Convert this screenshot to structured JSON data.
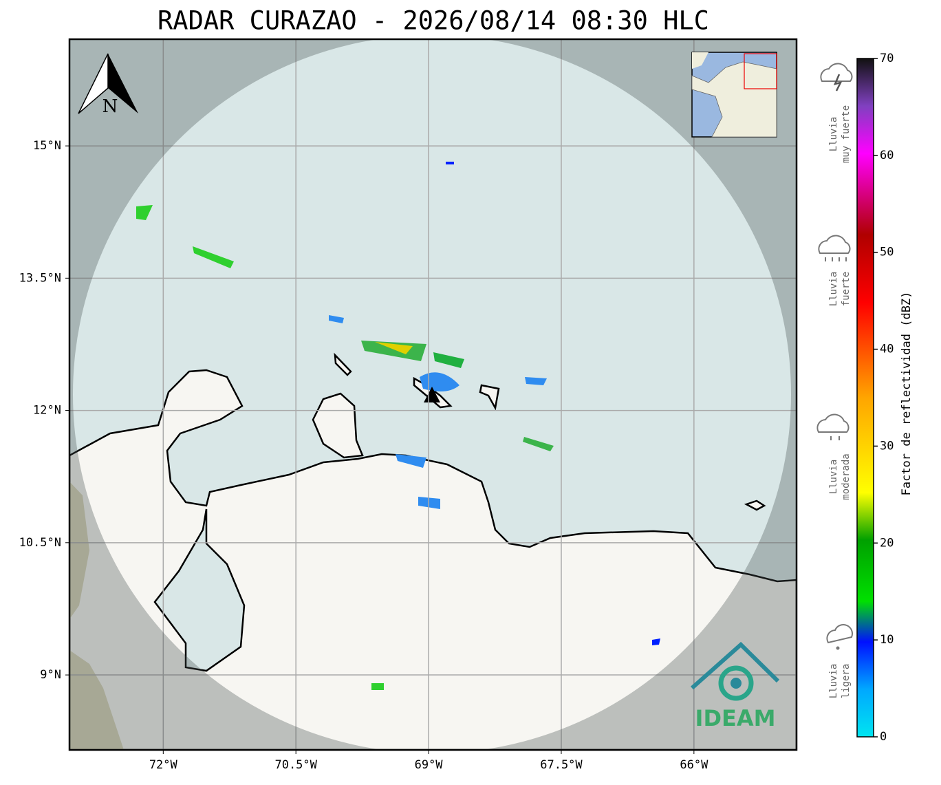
{
  "header": {
    "title": "RADAR CURAZAO - 2026/08/14 08:30 HLC"
  },
  "map": {
    "lonlim": [
      -73.06,
      -64.84
    ],
    "latlim": [
      8.15,
      16.21
    ],
    "grid": true,
    "lon_ticks": [
      {
        "value": -72,
        "label": "72°W"
      },
      {
        "value": -70.5,
        "label": "70.5°W"
      },
      {
        "value": -69,
        "label": "69°W"
      },
      {
        "value": -67.5,
        "label": "67.5°W"
      },
      {
        "value": -66,
        "label": "66°W"
      }
    ],
    "lat_ticks": [
      {
        "value": 15,
        "label": "15°N"
      },
      {
        "value": 13.5,
        "label": "13.5°N"
      },
      {
        "value": 12,
        "label": "12°N"
      },
      {
        "value": 10.5,
        "label": "10.5°N"
      },
      {
        "value": 9,
        "label": "9°N"
      }
    ],
    "north_label": "N",
    "logo": "IDEAM"
  },
  "colorbar": {
    "label": "Factor de reflectividad (dBZ)",
    "lim": [
      0,
      70
    ],
    "ticks": [
      0,
      10,
      20,
      30,
      40,
      50,
      60,
      70
    ]
  },
  "legend": [
    {
      "lines": [
        "Lluvia",
        "muy fuerte"
      ]
    },
    {
      "lines": [
        "Lluvia",
        "fuerte"
      ]
    },
    {
      "lines": [
        "Lluvia",
        "moderada"
      ]
    },
    {
      "lines": [
        "Lluvia",
        "ligera"
      ]
    }
  ]
}
